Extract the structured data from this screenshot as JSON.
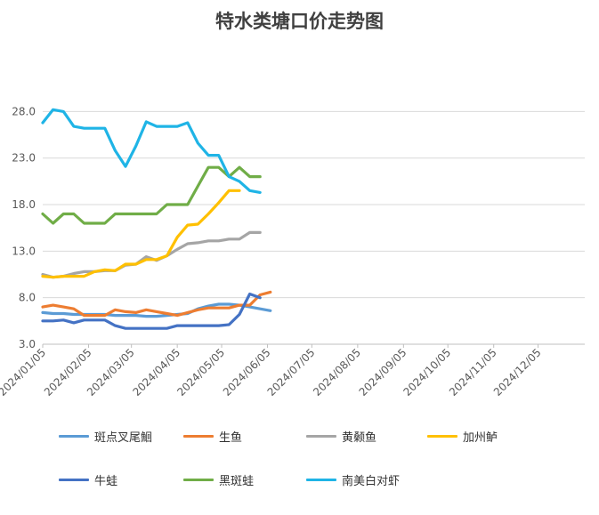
{
  "chart_data": {
    "type": "line",
    "title": "特水类塘口价走势图",
    "xlabel": "",
    "ylabel": "",
    "ylim": [
      3.0,
      31.0
    ],
    "y_ticks": [
      "3.0",
      "8.0",
      "13.0",
      "18.0",
      "23.0",
      "28.0"
    ],
    "x_ticks": [
      "2024/01/05",
      "2024/02/05",
      "2024/03/05",
      "2024/04/05",
      "2024/05/05",
      "2024/06/05",
      "2024/07/05",
      "2024/08/05",
      "2024/09/05",
      "2024/10/05",
      "2024/11/05",
      "2024/12/05"
    ],
    "x": [
      "2024/01/05",
      "2024/01/12",
      "2024/01/19",
      "2024/01/26",
      "2024/02/02",
      "2024/02/09",
      "2024/02/16",
      "2024/02/23",
      "2024/03/01",
      "2024/03/08",
      "2024/03/15",
      "2024/03/22",
      "2024/03/29",
      "2024/04/05",
      "2024/04/12",
      "2024/04/19",
      "2024/04/26",
      "2024/05/03",
      "2024/05/10",
      "2024/05/17",
      "2024/05/24",
      "2024/05/31",
      "2024/06/07"
    ],
    "grid": true,
    "legend_position": "bottom",
    "series": [
      {
        "name": "斑点叉尾鮰",
        "color": "#5b9bd5",
        "values": [
          6.4,
          6.3,
          6.3,
          6.2,
          6.2,
          6.2,
          6.2,
          6.1,
          6.1,
          6.1,
          6.0,
          6.0,
          6.1,
          6.2,
          6.3,
          6.8,
          7.1,
          7.3,
          7.3,
          7.2,
          7.0,
          6.8,
          6.6
        ]
      },
      {
        "name": "生鱼",
        "color": "#ed7d31",
        "values": [
          7.0,
          7.2,
          7.0,
          6.8,
          6.1,
          6.1,
          6.1,
          6.7,
          6.5,
          6.4,
          6.7,
          6.5,
          6.3,
          6.1,
          6.4,
          6.7,
          6.9,
          6.9,
          6.9,
          7.2,
          7.2,
          8.3,
          8.6
        ]
      },
      {
        "name": "黄颡鱼",
        "color": "#a5a5a5",
        "values": [
          10.5,
          10.2,
          10.3,
          10.6,
          10.8,
          10.8,
          10.9,
          10.9,
          11.5,
          11.6,
          12.4,
          12.0,
          12.5,
          13.2,
          13.8,
          13.9,
          14.1,
          14.1,
          14.3,
          14.3,
          15.0,
          15.0,
          null
        ]
      },
      {
        "name": "加州鲈",
        "color": "#ffc000",
        "values": [
          10.3,
          10.2,
          10.3,
          10.3,
          10.3,
          10.8,
          11.0,
          10.9,
          11.6,
          11.6,
          12.1,
          12.1,
          12.5,
          14.5,
          15.8,
          15.9,
          17.0,
          18.2,
          19.5,
          19.5,
          null,
          null,
          null
        ]
      },
      {
        "name": "牛蛙",
        "color": "#4472c4",
        "values": [
          5.5,
          5.5,
          5.6,
          5.3,
          5.6,
          5.6,
          5.6,
          5.0,
          4.7,
          4.7,
          4.7,
          4.7,
          4.7,
          5.0,
          5.0,
          5.0,
          5.0,
          5.0,
          5.1,
          6.2,
          8.4,
          8.0,
          null
        ]
      },
      {
        "name": "黑斑蛙",
        "color": "#70ad47",
        "values": [
          17.0,
          16.0,
          17.0,
          17.0,
          16.0,
          16.0,
          16.0,
          17.0,
          17.0,
          17.0,
          17.0,
          17.0,
          18.0,
          18.0,
          18.0,
          20.0,
          22.0,
          22.0,
          21.0,
          22.0,
          21.0,
          21.0,
          null
        ]
      },
      {
        "name": "南美白对虾",
        "color": "#1fb4e6",
        "values": [
          26.8,
          28.2,
          28.0,
          26.4,
          26.2,
          26.2,
          26.2,
          23.8,
          22.1,
          24.3,
          26.9,
          26.4,
          26.4,
          26.4,
          26.8,
          24.6,
          23.3,
          23.3,
          21.0,
          20.5,
          19.5,
          19.3,
          null
        ]
      }
    ]
  }
}
